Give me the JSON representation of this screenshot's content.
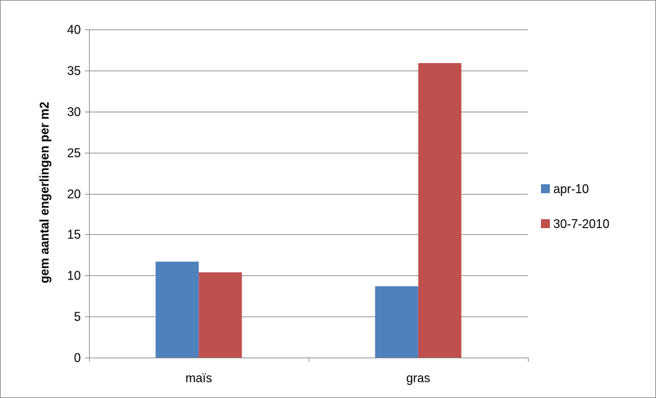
{
  "chart_data": {
    "type": "bar",
    "categories": [
      "maïs",
      "gras"
    ],
    "series": [
      {
        "name": "apr-10",
        "values": [
          11.7,
          8.7
        ],
        "color": "#4f81bd"
      },
      {
        "name": "30-7-2010",
        "values": [
          10.4,
          35.9
        ],
        "color": "#c0504d"
      }
    ],
    "ylabel": "gem aantal engerlingen per m2",
    "xlabel": "",
    "ylim": [
      0,
      40
    ],
    "yticks": [
      0,
      5,
      10,
      15,
      20,
      25,
      30,
      35,
      40
    ],
    "grid": true,
    "legend_position": "right"
  },
  "colors": {
    "gridline": "#868686",
    "axis": "#868686",
    "frame": "#8c8c8c"
  }
}
